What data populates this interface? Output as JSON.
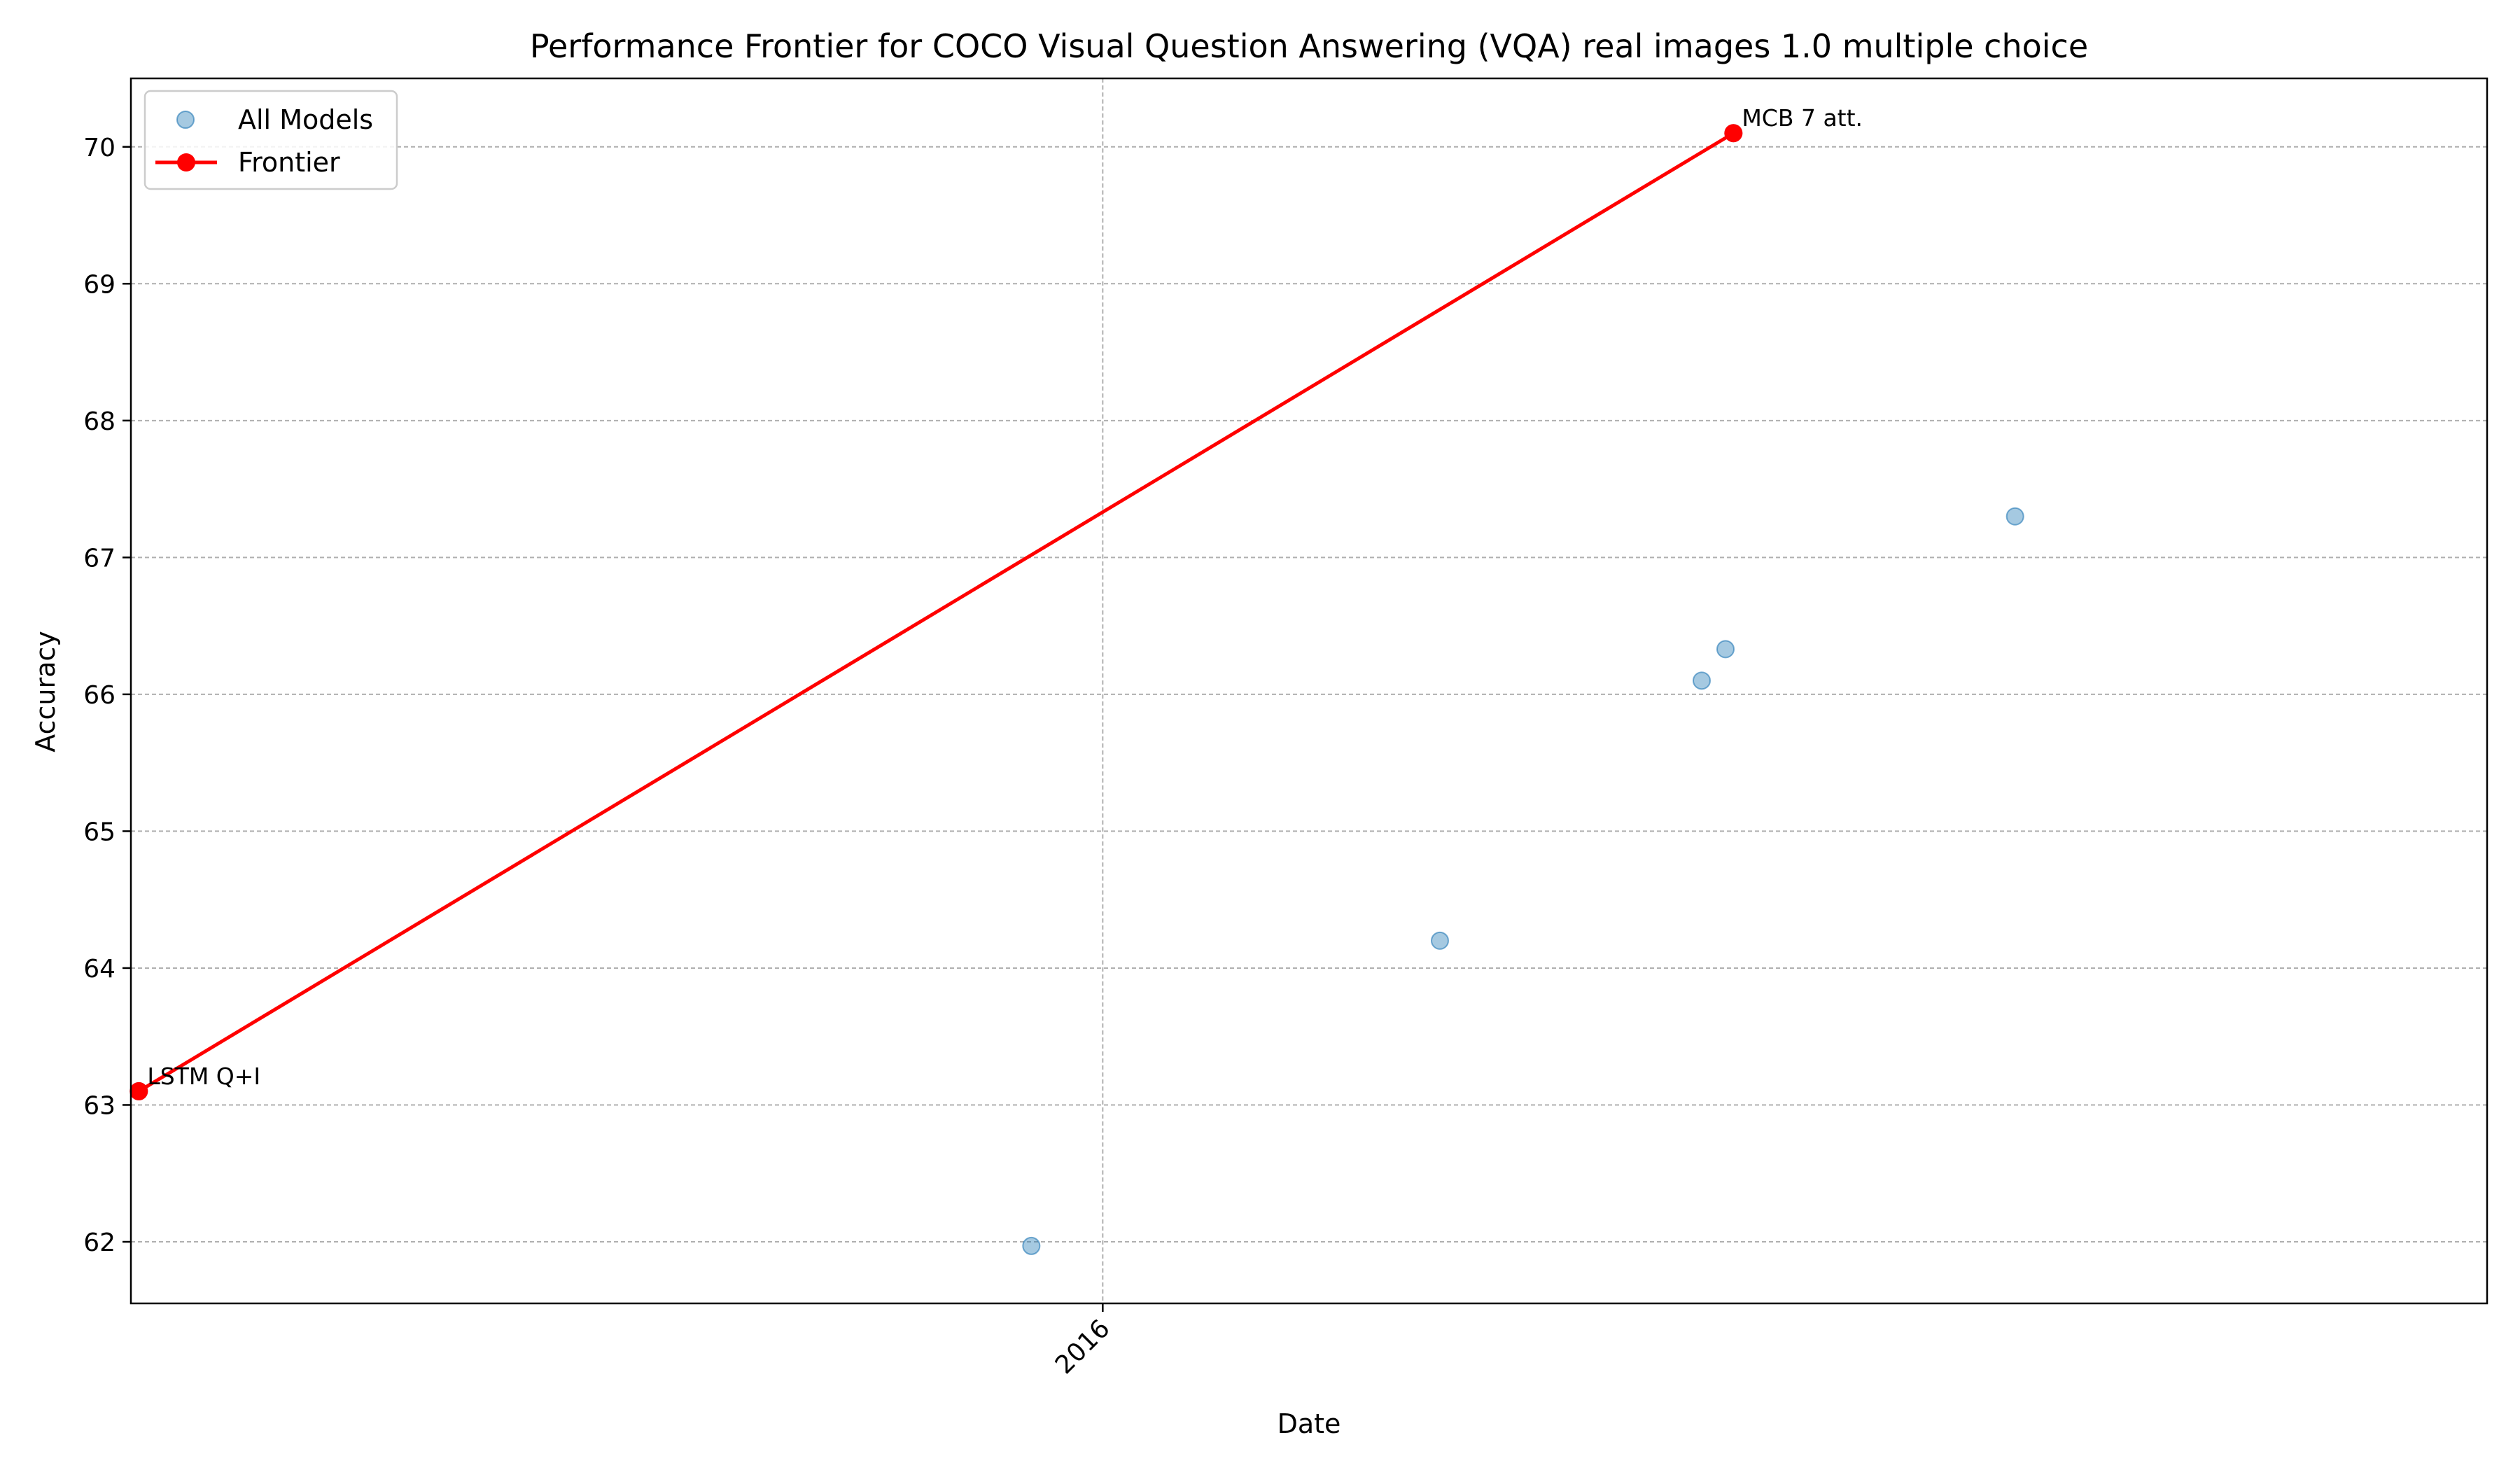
{
  "chart_data": {
    "type": "scatter",
    "title": "Performance Frontier for COCO Visual Question Answering (VQA) real images 1.0 multiple choice",
    "xlabel": "Date",
    "ylabel": "Accuracy",
    "xlim": [
      "2015-05-01",
      "2016-12-15"
    ],
    "ylim": [
      61.55,
      70.5
    ],
    "x_ticks": [
      {
        "date": "2016-01-01",
        "label": "2016"
      }
    ],
    "y_ticks": [
      62,
      63,
      64,
      65,
      66,
      67,
      68,
      69,
      70
    ],
    "grid": true,
    "legend_position": "top-left",
    "series": [
      {
        "name": "All Models",
        "kind": "scatter",
        "color": "#1f77b4",
        "points": [
          {
            "x": "2015-05-03",
            "y": 63.1
          },
          {
            "x": "2015-12-14",
            "y": 61.97
          },
          {
            "x": "2016-03-26",
            "y": 64.2
          },
          {
            "x": "2016-05-31",
            "y": 66.1
          },
          {
            "x": "2016-06-06",
            "y": 66.33
          },
          {
            "x": "2016-06-08",
            "y": 70.1
          },
          {
            "x": "2016-08-18",
            "y": 67.3
          }
        ]
      },
      {
        "name": "Frontier",
        "kind": "line",
        "color": "#ff0000",
        "points": [
          {
            "x": "2015-05-03",
            "y": 63.1,
            "label": "LSTM Q+I"
          },
          {
            "x": "2016-06-08",
            "y": 70.1,
            "label": "MCB 7 att."
          }
        ]
      }
    ]
  }
}
